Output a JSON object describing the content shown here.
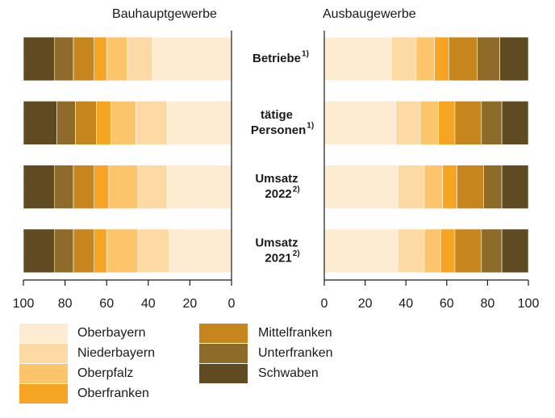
{
  "chart_data": {
    "type": "bar",
    "orientation": "horizontal",
    "stacked": true,
    "categories": [
      "Betriebe",
      "tätige Personen",
      "Umsatz 2022",
      "Umsatz 2021"
    ],
    "category_notes": [
      "1)",
      "1)",
      "2)",
      "2)"
    ],
    "series": [
      {
        "name": "Oberbayern",
        "color": "#feecd2"
      },
      {
        "name": "Niederbayern",
        "color": "#fdd9a3"
      },
      {
        "name": "Oberpfalz",
        "color": "#fcc56c"
      },
      {
        "name": "Oberfranken",
        "color": "#f5a423"
      },
      {
        "name": "Mittelfranken",
        "color": "#c6861d"
      },
      {
        "name": "Unterfranken",
        "color": "#8f6b2a"
      },
      {
        "name": "Schwaben",
        "color": "#5f4a22"
      }
    ],
    "panels": [
      {
        "title": "Bauhauptgewerbe",
        "xlim": [
          100,
          0
        ],
        "xticks": [
          100,
          80,
          60,
          40,
          20,
          0
        ],
        "series_values": [
          [
            38,
            31,
            31,
            30
          ],
          [
            12,
            15,
            14,
            15
          ],
          [
            10,
            12,
            14,
            15
          ],
          [
            6,
            7,
            7,
            6
          ],
          [
            10,
            10,
            10,
            10
          ],
          [
            9,
            9,
            9,
            9
          ],
          [
            15,
            16,
            15,
            15
          ]
        ]
      },
      {
        "title": "Ausbaugewerbe",
        "xlim": [
          0,
          100
        ],
        "xticks": [
          0,
          20,
          40,
          60,
          80,
          100
        ],
        "series_values": [
          [
            33,
            35,
            36,
            36
          ],
          [
            12,
            12,
            13,
            13
          ],
          [
            9,
            9,
            9,
            8
          ],
          [
            7,
            8,
            7,
            7
          ],
          [
            14,
            13,
            13,
            13
          ],
          [
            11,
            10,
            9,
            10
          ],
          [
            14,
            13,
            13,
            13
          ]
        ]
      }
    ]
  }
}
